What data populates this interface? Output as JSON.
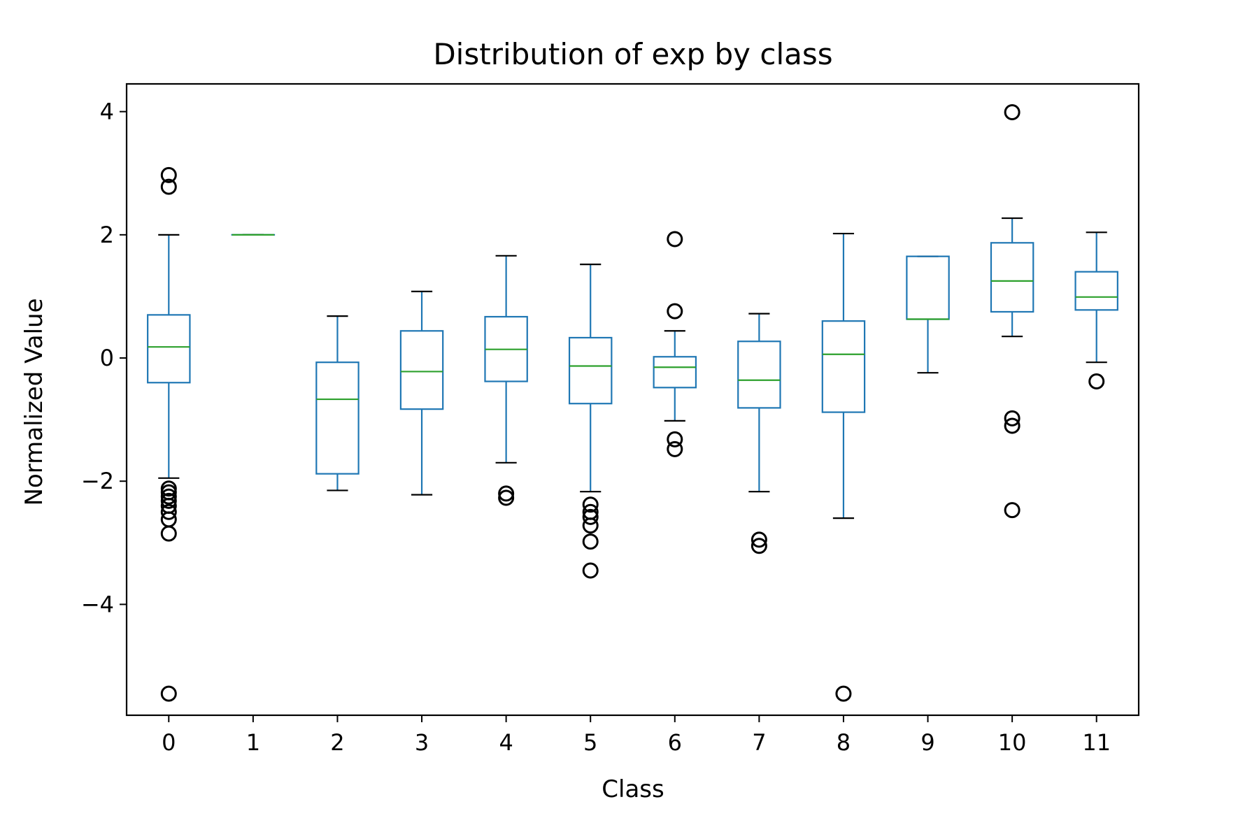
{
  "chart_data": {
    "type": "boxplot",
    "title": "Distribution of exp by class",
    "xlabel": "Class",
    "ylabel": "Normalized Value",
    "ylim": [
      -5.8,
      4.45
    ],
    "yticks": [
      4,
      2,
      0,
      -2,
      -4
    ],
    "ytick_labels": [
      "4",
      "2",
      "0",
      "−2",
      "−4"
    ],
    "grid": false,
    "legend": "none",
    "colors": {
      "box": "#1f77b4",
      "median": "#2ca02c",
      "cap": "#000000",
      "flier": "#000000",
      "axes": "#000000"
    },
    "categories": [
      "0",
      "1",
      "2",
      "3",
      "4",
      "5",
      "6",
      "7",
      "8",
      "9",
      "10",
      "11"
    ],
    "boxes": [
      {
        "class": "0",
        "whislo": -1.95,
        "q1": -0.4,
        "med": 0.18,
        "q3": 0.7,
        "whishi": 2.0,
        "fliers": [
          2.97,
          2.78,
          -2.12,
          -2.18,
          -2.25,
          -2.32,
          -2.4,
          -2.5,
          -2.62,
          -2.85,
          -5.45
        ]
      },
      {
        "class": "1",
        "whislo": 2.0,
        "q1": 2.0,
        "med": 2.0,
        "q3": 2.0,
        "whishi": 2.0,
        "fliers": []
      },
      {
        "class": "2",
        "whislo": -2.15,
        "q1": -1.88,
        "med": -0.67,
        "q3": -0.07,
        "whishi": 0.68,
        "fliers": []
      },
      {
        "class": "3",
        "whislo": -2.22,
        "q1": -0.83,
        "med": -0.22,
        "q3": 0.44,
        "whishi": 1.08,
        "fliers": []
      },
      {
        "class": "4",
        "whislo": -1.7,
        "q1": -0.38,
        "med": 0.14,
        "q3": 0.67,
        "whishi": 1.66,
        "fliers": [
          -2.2,
          -2.27
        ]
      },
      {
        "class": "5",
        "whislo": -2.17,
        "q1": -0.74,
        "med": -0.13,
        "q3": 0.33,
        "whishi": 1.52,
        "fliers": [
          -2.38,
          -2.5,
          -2.58,
          -2.72,
          -2.98,
          -3.45
        ]
      },
      {
        "class": "6",
        "whislo": -1.02,
        "q1": -0.48,
        "med": -0.15,
        "q3": 0.02,
        "whishi": 0.44,
        "fliers": [
          1.93,
          0.76,
          -1.32,
          -1.48
        ]
      },
      {
        "class": "7",
        "whislo": -2.17,
        "q1": -0.81,
        "med": -0.36,
        "q3": 0.27,
        "whishi": 0.72,
        "fliers": [
          -2.95,
          -3.05
        ]
      },
      {
        "class": "8",
        "whislo": -2.6,
        "q1": -0.88,
        "med": 0.06,
        "q3": 0.6,
        "whishi": 2.02,
        "fliers": [
          -5.45
        ]
      },
      {
        "class": "9",
        "whislo": -0.24,
        "q1": 0.63,
        "med": 0.63,
        "q3": 1.65,
        "whishi": 1.65,
        "fliers": []
      },
      {
        "class": "10",
        "whislo": 0.35,
        "q1": 0.75,
        "med": 1.25,
        "q3": 1.87,
        "whishi": 2.27,
        "fliers": [
          3.99,
          -0.98,
          -1.1,
          -2.47
        ]
      },
      {
        "class": "11",
        "whislo": -0.07,
        "q1": 0.78,
        "med": 0.99,
        "q3": 1.4,
        "whishi": 2.04,
        "fliers": [
          -0.38
        ]
      }
    ]
  }
}
